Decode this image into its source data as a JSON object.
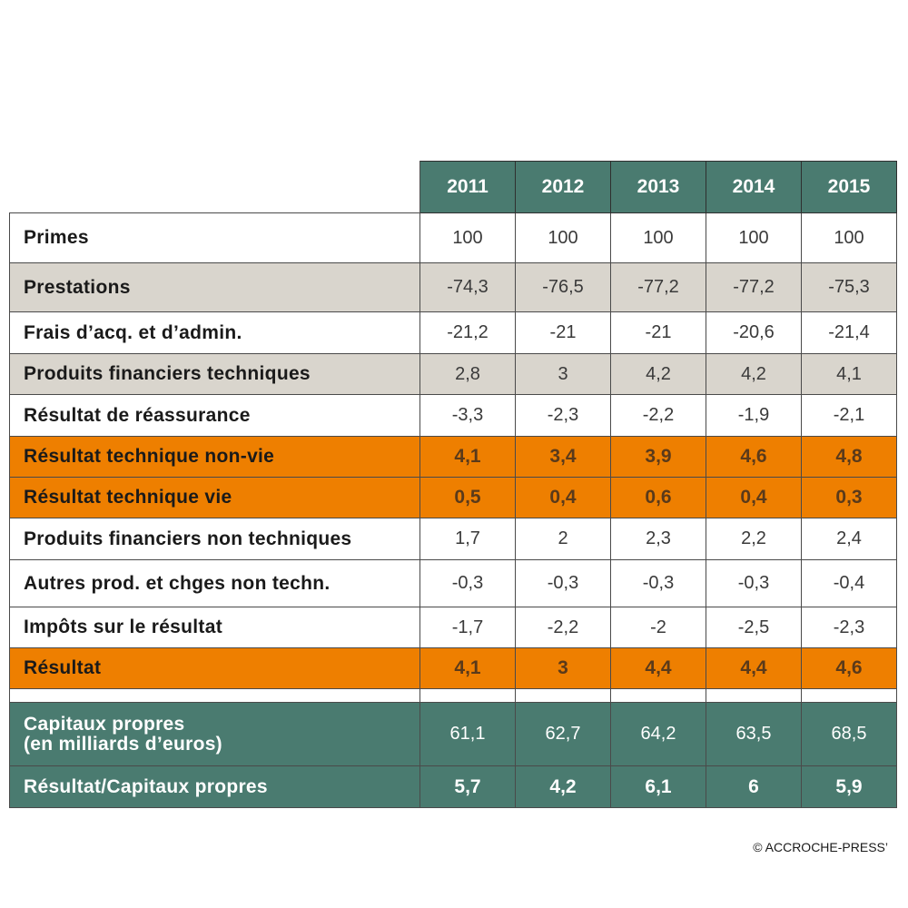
{
  "years": [
    "2011",
    "2012",
    "2013",
    "2014",
    "2015"
  ],
  "rows": [
    {
      "label": "Primes",
      "values": [
        "100",
        "100",
        "100",
        "100",
        "100"
      ],
      "style": "white"
    },
    {
      "label": "Prestations",
      "values": [
        "-74,3",
        "-76,5",
        "-77,2",
        "-77,2",
        "-75,3"
      ],
      "style": "gray"
    },
    {
      "label": "Frais d’acq. et d’admin.",
      "values": [
        "-21,2",
        "-21",
        "-21",
        "-20,6",
        "-21,4"
      ],
      "style": "white"
    },
    {
      "label": "Produits financiers techniques",
      "values": [
        "2,8",
        "3",
        "4,2",
        "4,2",
        "4,1"
      ],
      "style": "gray"
    },
    {
      "label": "Résultat de réassurance",
      "values": [
        "-3,3",
        "-2,3",
        "-2,2",
        "-1,9",
        "-2,1"
      ],
      "style": "white"
    },
    {
      "label": "Résultat technique non-vie",
      "values": [
        "4,1",
        "3,4",
        "3,9",
        "4,6",
        "4,8"
      ],
      "style": "orange"
    },
    {
      "label": "Résultat technique vie",
      "values": [
        "0,5",
        "0,4",
        "0,6",
        "0,4",
        "0,3"
      ],
      "style": "orange"
    },
    {
      "label": "Produits financiers non techniques",
      "values": [
        "1,7",
        "2",
        "2,3",
        "2,2",
        "2,4"
      ],
      "style": "white"
    },
    {
      "label": "Autres prod. et chges non techn.",
      "values": [
        "-0,3",
        "-0,3",
        "-0,3",
        "-0,3",
        "-0,4"
      ],
      "style": "white"
    },
    {
      "label": "Impôts sur le résultat",
      "values": [
        "-1,7",
        "-2,2",
        "-2",
        "-2,5",
        "-2,3"
      ],
      "style": "white"
    },
    {
      "label": "Résultat",
      "values": [
        "4,1",
        "3",
        "4,4",
        "4,4",
        "4,6"
      ],
      "style": "orange"
    }
  ],
  "capitaux": {
    "label_line1": "Capitaux propres",
    "label_line2": "(en milliards d’euros)",
    "values": [
      "61,1",
      "62,7",
      "64,2",
      "63,5",
      "68,5"
    ]
  },
  "ratio": {
    "label": "Résultat/Capitaux propres",
    "values": [
      "5,7",
      "4,2",
      "6,1",
      "6",
      "5,9"
    ]
  },
  "copyright": "© ACCROCHE-PRESS’"
}
